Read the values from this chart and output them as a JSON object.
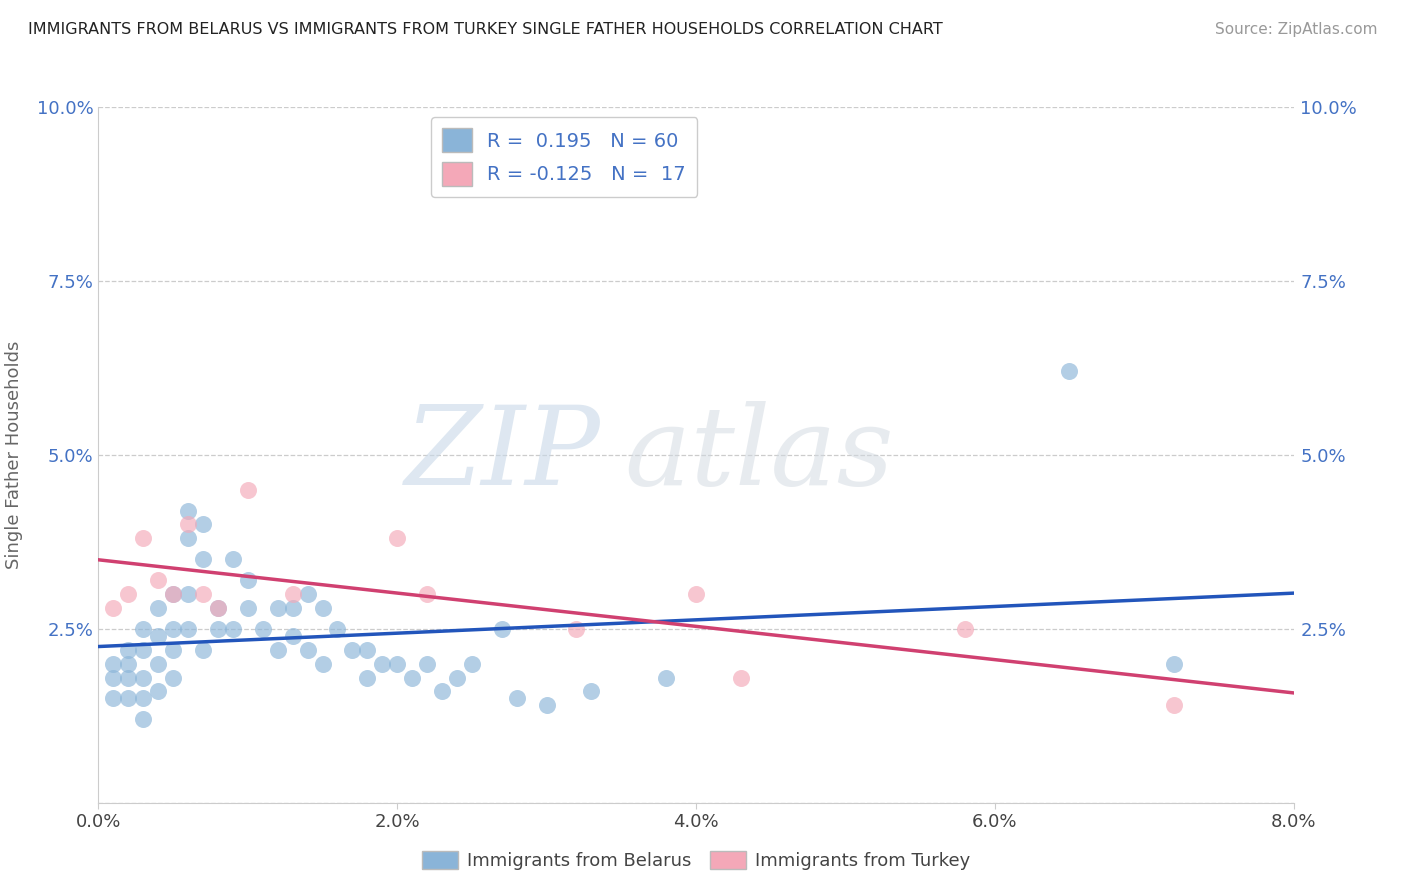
{
  "title": "IMMIGRANTS FROM BELARUS VS IMMIGRANTS FROM TURKEY SINGLE FATHER HOUSEHOLDS CORRELATION CHART",
  "source": "Source: ZipAtlas.com",
  "ylabel": "Single Father Households",
  "xlim": [
    0.0,
    0.08
  ],
  "ylim": [
    0.0,
    0.1
  ],
  "xtick_labels": [
    "0.0%",
    "",
    "2.0%",
    "",
    "4.0%",
    "",
    "6.0%",
    "",
    "8.0%"
  ],
  "xtick_values": [
    0.0,
    0.01,
    0.02,
    0.03,
    0.04,
    0.05,
    0.06,
    0.07,
    0.08
  ],
  "ytick_labels": [
    "",
    "2.5%",
    "5.0%",
    "7.5%",
    "10.0%"
  ],
  "ytick_values": [
    0.0,
    0.025,
    0.05,
    0.075,
    0.1
  ],
  "legend_entries": [
    "Immigrants from Belarus",
    "Immigrants from Turkey"
  ],
  "r_belarus": 0.195,
  "n_belarus": 60,
  "r_turkey": -0.125,
  "n_turkey": 17,
  "color_belarus": "#8ab4d8",
  "color_turkey": "#f4a8b8",
  "line_color_belarus": "#2255bb",
  "line_color_turkey": "#d04070",
  "watermark_zip": "ZIP",
  "watermark_atlas": "atlas",
  "belarus_x": [
    0.001,
    0.001,
    0.001,
    0.002,
    0.002,
    0.002,
    0.002,
    0.003,
    0.003,
    0.003,
    0.003,
    0.003,
    0.004,
    0.004,
    0.004,
    0.004,
    0.005,
    0.005,
    0.005,
    0.005,
    0.006,
    0.006,
    0.006,
    0.006,
    0.007,
    0.007,
    0.007,
    0.008,
    0.008,
    0.009,
    0.009,
    0.01,
    0.01,
    0.011,
    0.012,
    0.012,
    0.013,
    0.013,
    0.014,
    0.014,
    0.015,
    0.015,
    0.016,
    0.017,
    0.018,
    0.018,
    0.019,
    0.02,
    0.021,
    0.022,
    0.023,
    0.024,
    0.025,
    0.027,
    0.028,
    0.03,
    0.033,
    0.038,
    0.065,
    0.072
  ],
  "belarus_y": [
    0.02,
    0.018,
    0.015,
    0.022,
    0.02,
    0.018,
    0.015,
    0.025,
    0.022,
    0.018,
    0.015,
    0.012,
    0.028,
    0.024,
    0.02,
    0.016,
    0.03,
    0.025,
    0.022,
    0.018,
    0.042,
    0.038,
    0.03,
    0.025,
    0.04,
    0.035,
    0.022,
    0.028,
    0.025,
    0.035,
    0.025,
    0.032,
    0.028,
    0.025,
    0.028,
    0.022,
    0.028,
    0.024,
    0.03,
    0.022,
    0.028,
    0.02,
    0.025,
    0.022,
    0.022,
    0.018,
    0.02,
    0.02,
    0.018,
    0.02,
    0.016,
    0.018,
    0.02,
    0.025,
    0.015,
    0.014,
    0.016,
    0.018,
    0.062,
    0.02
  ],
  "turkey_x": [
    0.001,
    0.002,
    0.003,
    0.004,
    0.005,
    0.006,
    0.007,
    0.008,
    0.01,
    0.013,
    0.02,
    0.022,
    0.032,
    0.04,
    0.043,
    0.058,
    0.072
  ],
  "turkey_y": [
    0.028,
    0.03,
    0.038,
    0.032,
    0.03,
    0.04,
    0.03,
    0.028,
    0.045,
    0.03,
    0.038,
    0.03,
    0.025,
    0.03,
    0.018,
    0.025,
    0.014
  ]
}
